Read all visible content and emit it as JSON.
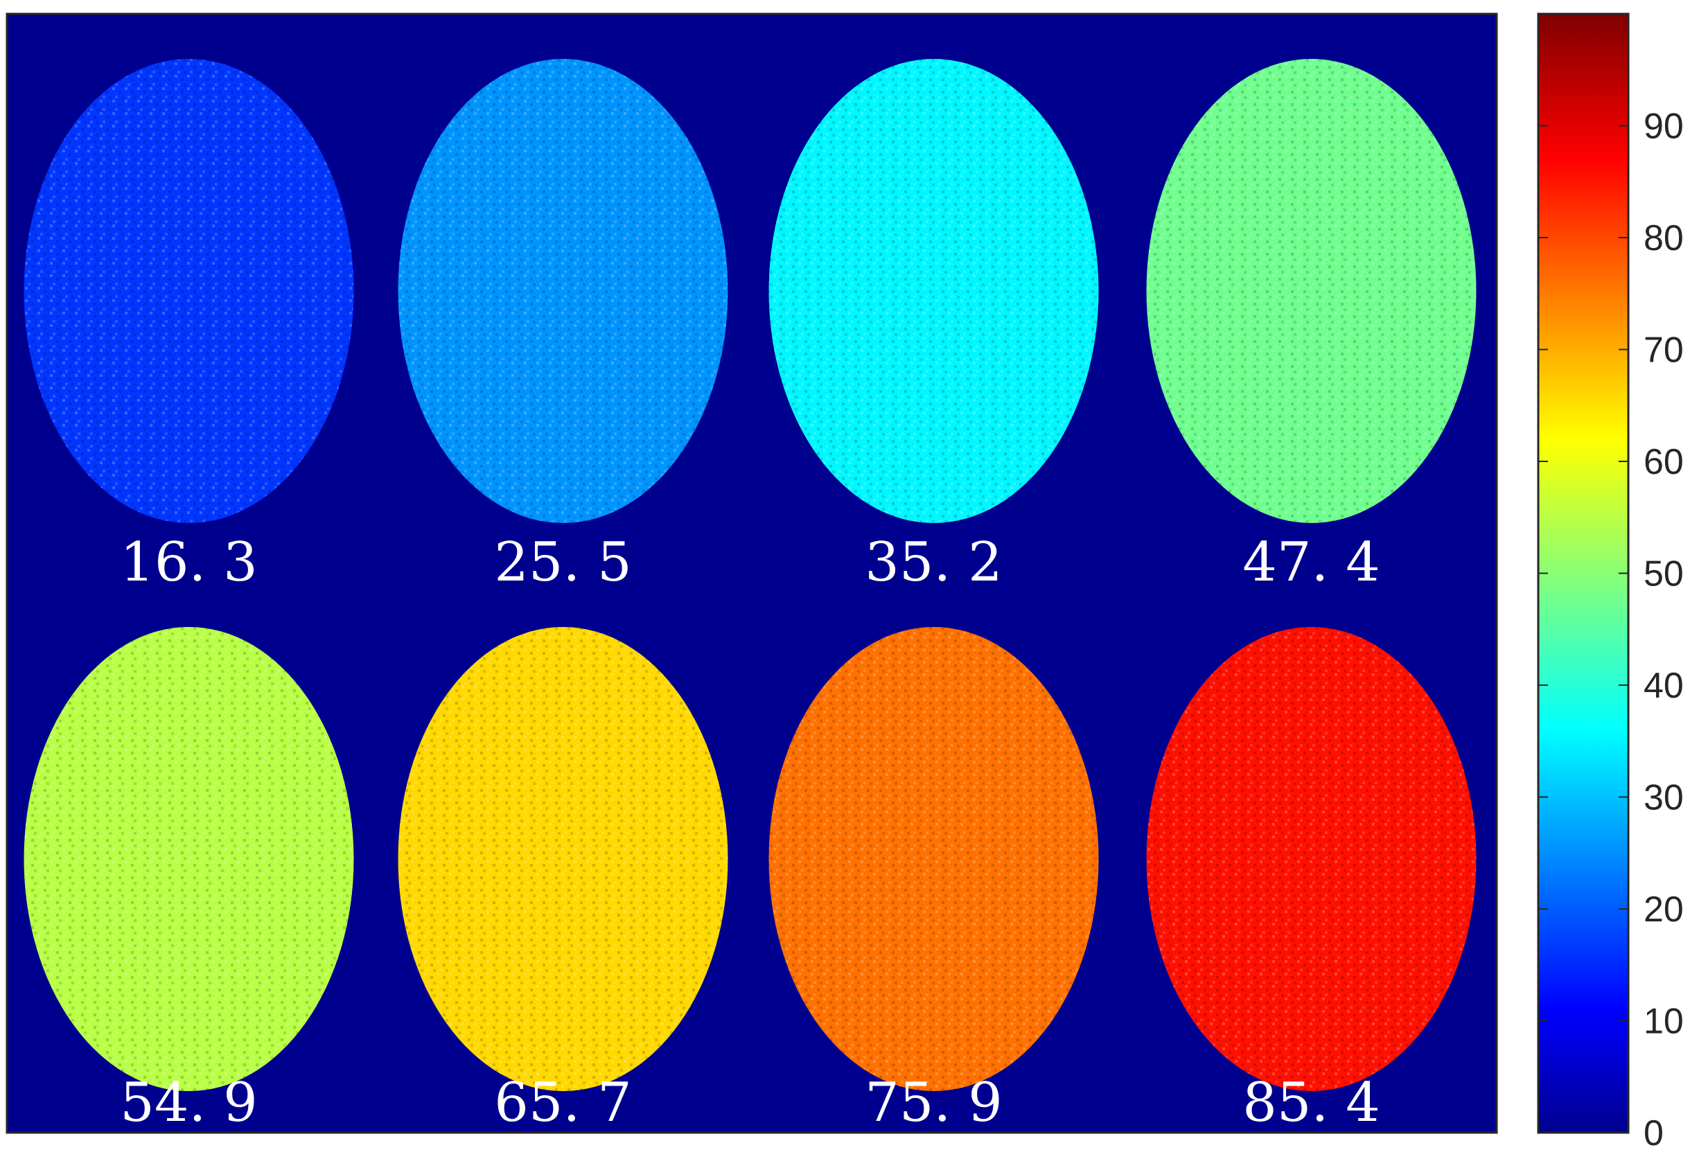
{
  "chart_data": {
    "type": "heatmap",
    "title": "",
    "xlabel": "",
    "ylabel": "",
    "background_color": "#00008f",
    "colormap": "jet",
    "panels": [
      {
        "label": "16. 3",
        "mean": 16.3
      },
      {
        "label": "25. 5",
        "mean": 25.5
      },
      {
        "label": "35. 2",
        "mean": 35.2
      },
      {
        "label": "47. 4",
        "mean": 47.4
      },
      {
        "label": "54. 9",
        "mean": 54.9
      },
      {
        "label": "65. 7",
        "mean": 65.7
      },
      {
        "label": "75. 9",
        "mean": 75.9
      },
      {
        "label": "85. 4",
        "mean": 85.4
      }
    ],
    "colorbar": {
      "range": [
        0,
        100
      ],
      "ticks": [
        {
          "value": 0,
          "label": "0"
        },
        {
          "value": 10,
          "label": "10"
        },
        {
          "value": 20,
          "label": "20"
        },
        {
          "value": 30,
          "label": "30"
        },
        {
          "value": 40,
          "label": "40"
        },
        {
          "value": 50,
          "label": "50"
        },
        {
          "value": 60,
          "label": "60"
        },
        {
          "value": 70,
          "label": "70"
        },
        {
          "value": 80,
          "label": "80"
        },
        {
          "value": 90,
          "label": "90"
        }
      ]
    }
  }
}
